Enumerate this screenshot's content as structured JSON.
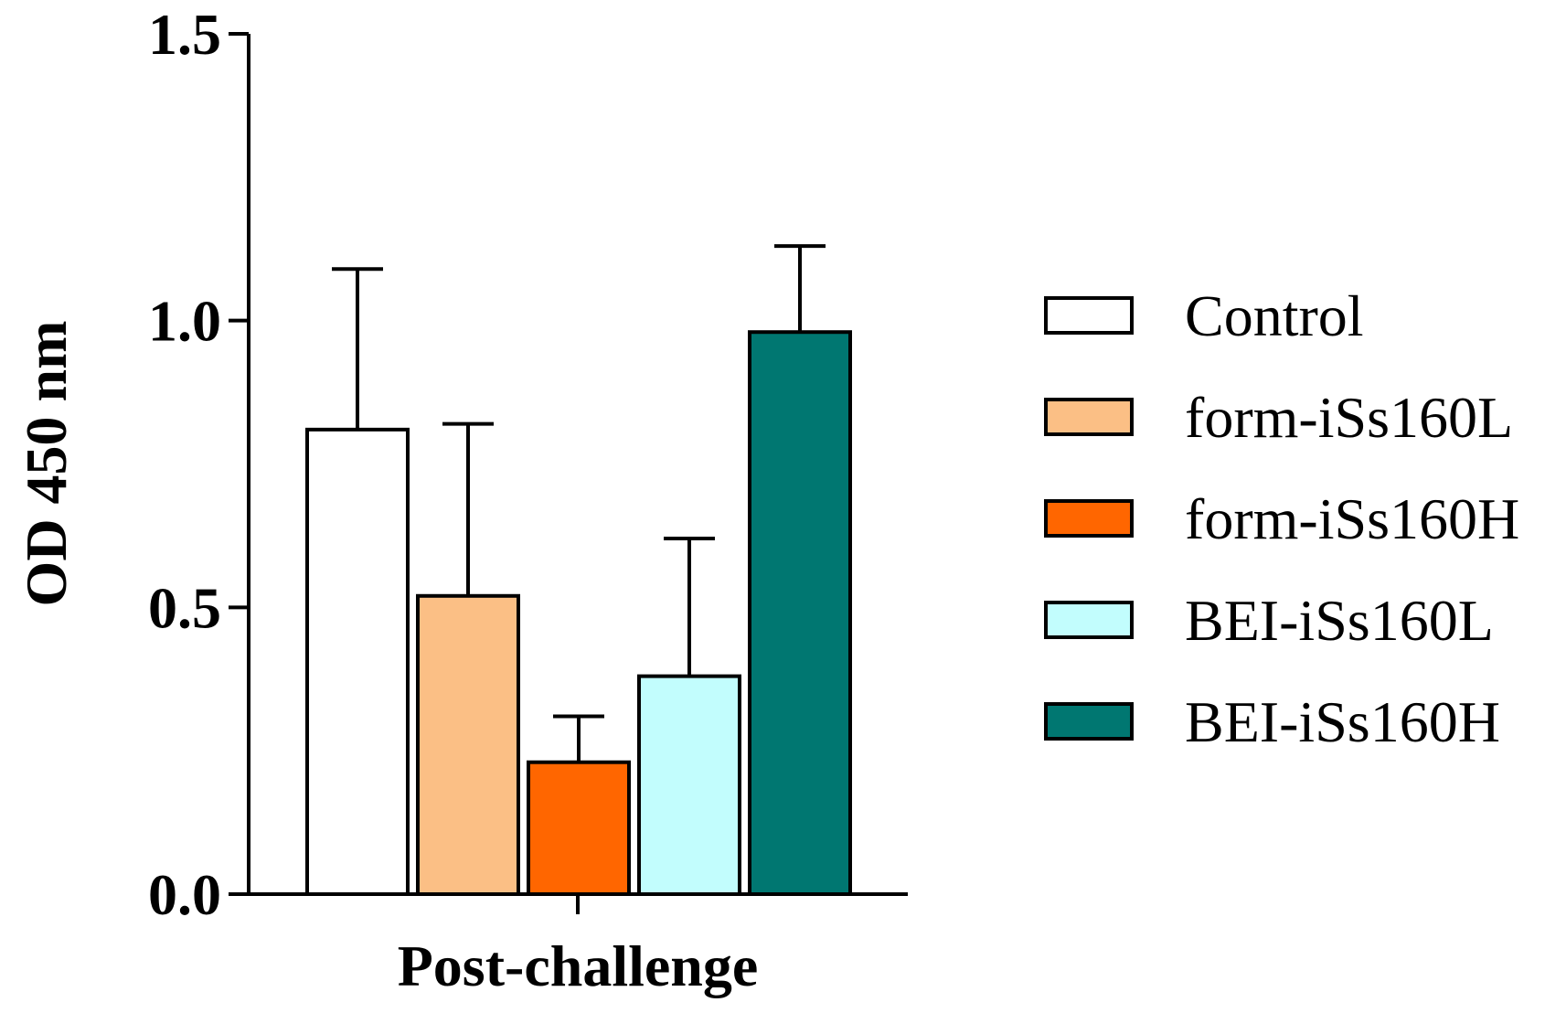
{
  "chart_data": {
    "type": "bar",
    "xlabel": "Post-challenge",
    "ylabel": "OD 450 nm",
    "ylim": [
      0,
      1.5
    ],
    "yticks": [
      "0.0",
      "0.5",
      "1.0",
      "1.5"
    ],
    "yticks_values": [
      0,
      0.5,
      1.0,
      1.5
    ],
    "categories": [
      "Post-challenge"
    ],
    "series": [
      {
        "name": "Control",
        "value": 0.81,
        "error": 0.28,
        "color": "#ffffff"
      },
      {
        "name": "form-iSs160L",
        "value": 0.52,
        "error": 0.3,
        "color": "#fbbf85"
      },
      {
        "name": "form-iSs160H",
        "value": 0.23,
        "error": 0.08,
        "color": "#ff6600"
      },
      {
        "name": "BEI-iSs160L",
        "value": 0.38,
        "error": 0.24,
        "color": "#c2fdfd"
      },
      {
        "name": "BEI-iSs160H",
        "value": 0.98,
        "error": 0.15,
        "color": "#007771"
      }
    ],
    "legend_position": "right",
    "grid": false
  }
}
